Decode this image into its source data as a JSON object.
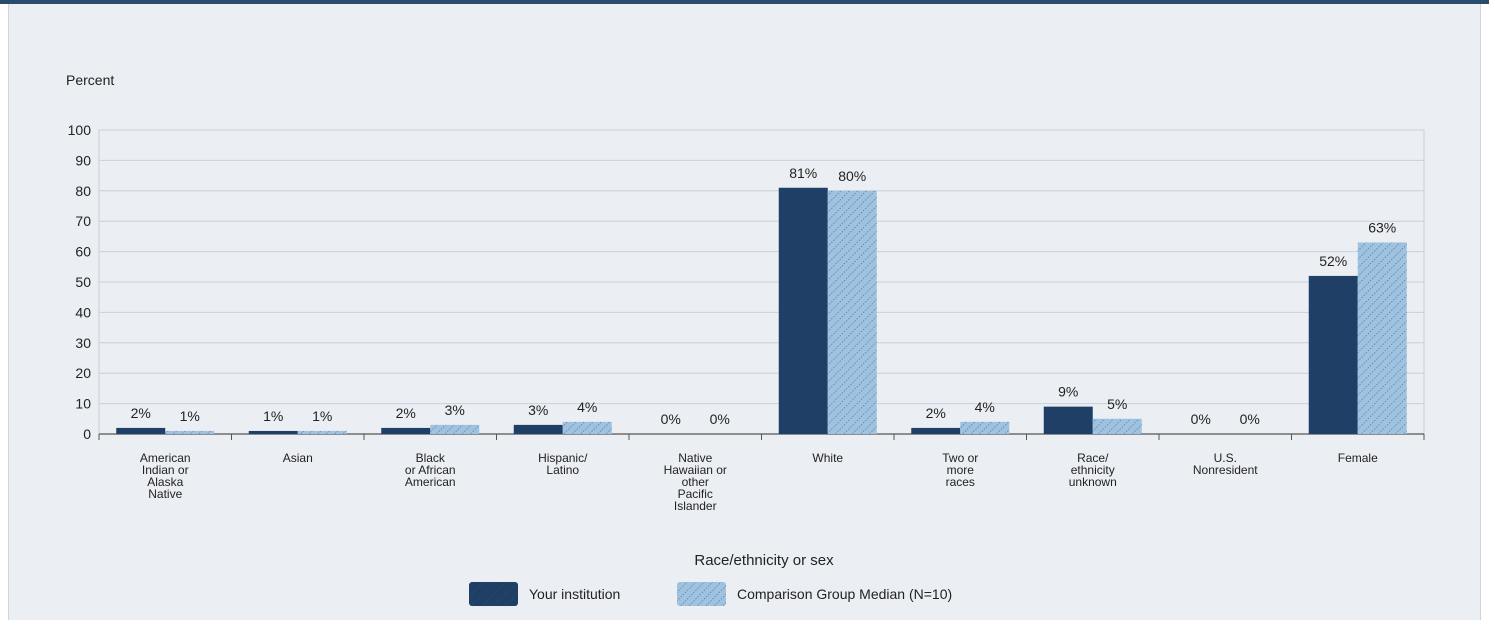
{
  "chart_data": {
    "type": "bar",
    "ylabel": "Percent",
    "xlabel": "Race/ethnicity or sex",
    "ylim": [
      0,
      100
    ],
    "yticks": [
      0,
      10,
      20,
      30,
      40,
      50,
      60,
      70,
      80,
      90,
      100
    ],
    "grid": true,
    "legend_position": "bottom",
    "categories": [
      [
        "American",
        "Indian or",
        "Alaska",
        "Native"
      ],
      [
        "Asian"
      ],
      [
        "Black",
        "or African",
        "American"
      ],
      [
        "Hispanic/",
        "Latino"
      ],
      [
        "Native",
        "Hawaiian or",
        "other",
        "Pacific",
        "Islander"
      ],
      [
        "White"
      ],
      [
        "Two or",
        "more",
        "races"
      ],
      [
        "Race/",
        "ethnicity",
        "unknown"
      ],
      [
        "U.S.",
        "Nonresident"
      ],
      [
        "Female"
      ]
    ],
    "series": [
      {
        "name": "Your institution",
        "color": "#1f3f66",
        "values": [
          2,
          1,
          2,
          3,
          0,
          81,
          2,
          9,
          0,
          52
        ],
        "labels": [
          "2%",
          "1%",
          "2%",
          "3%",
          "0%",
          "81%",
          "2%",
          "9%",
          "0%",
          "52%"
        ]
      },
      {
        "name": "Comparison Group Median (N=10)",
        "color": "#9fc2e0",
        "values": [
          1,
          1,
          3,
          4,
          0,
          80,
          4,
          5,
          0,
          63
        ],
        "labels": [
          "1%",
          "1%",
          "3%",
          "4%",
          "0%",
          "80%",
          "4%",
          "5%",
          "0%",
          "63%"
        ]
      }
    ]
  }
}
